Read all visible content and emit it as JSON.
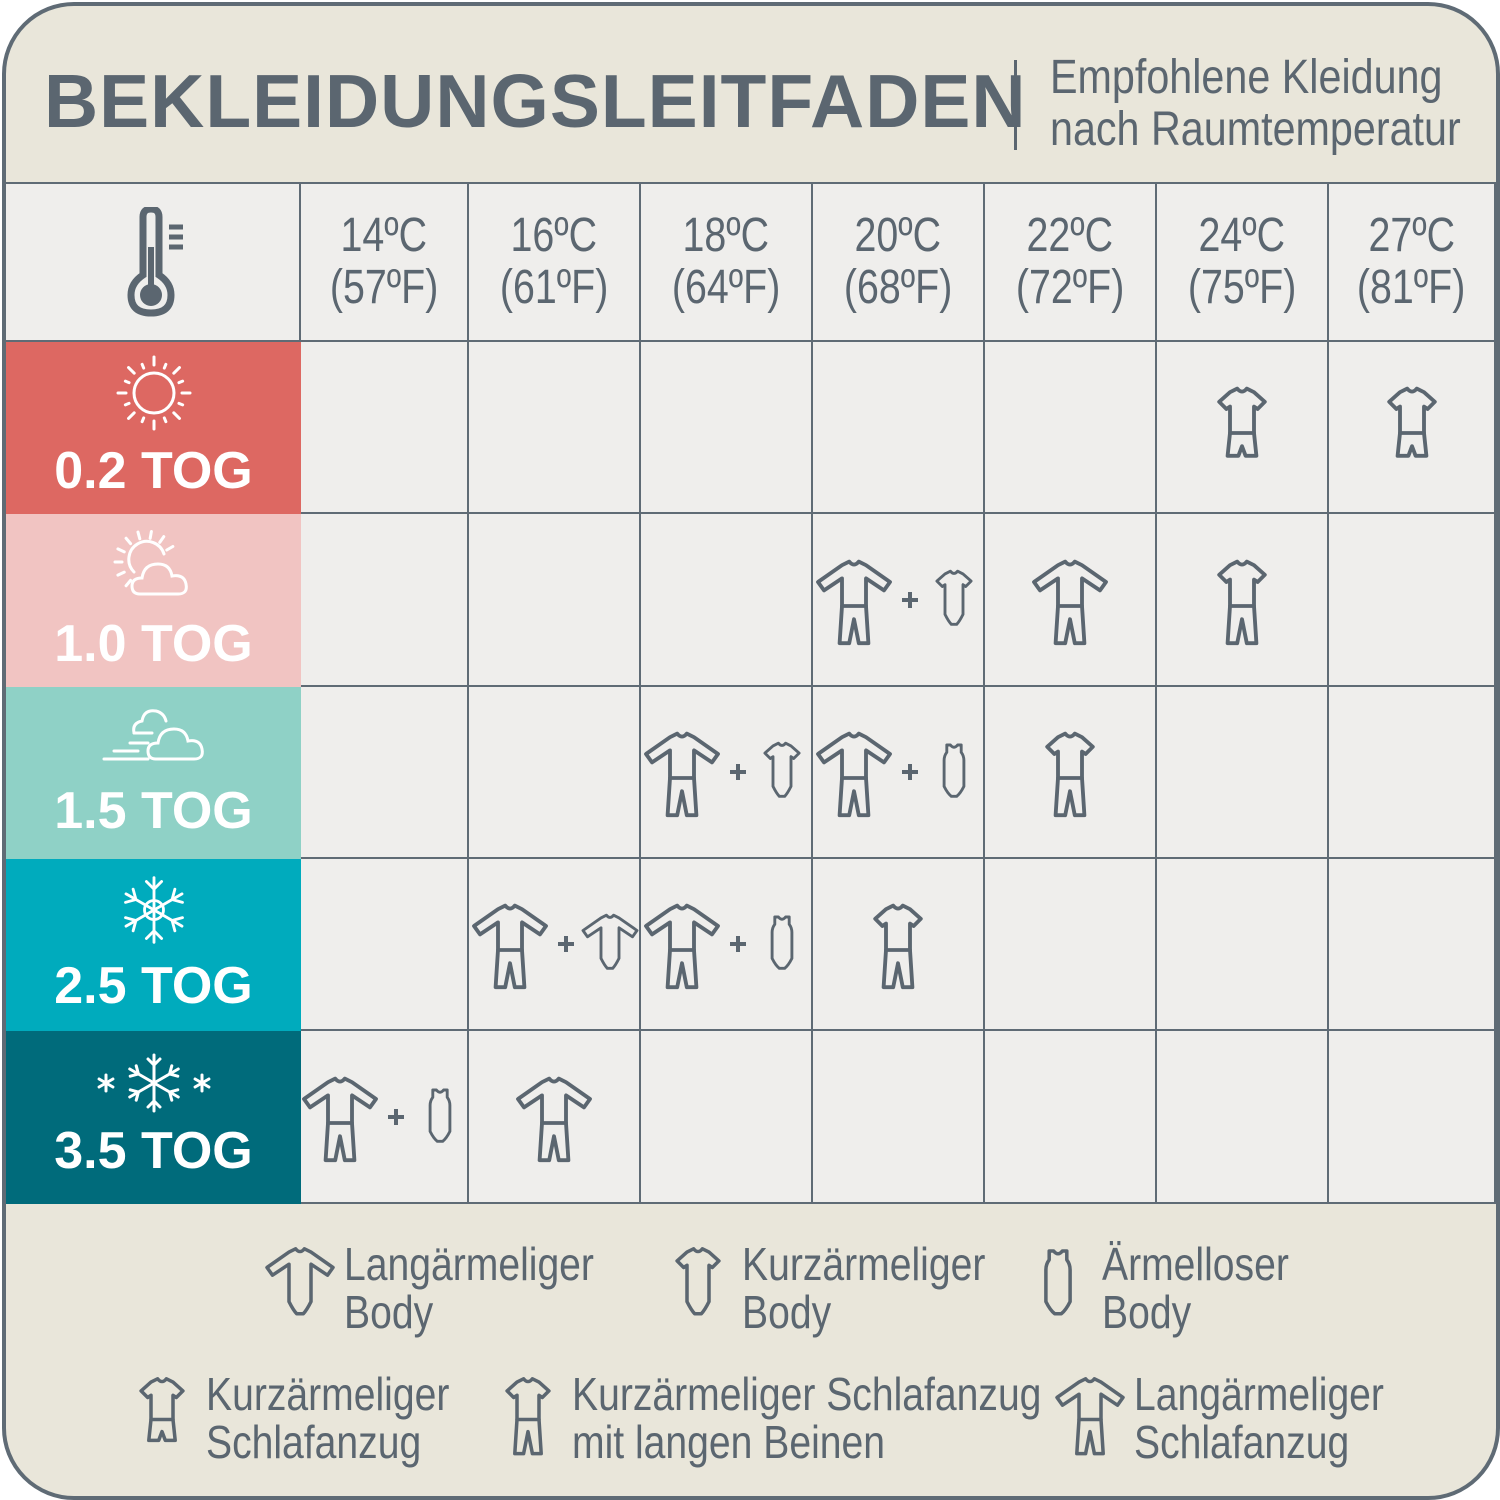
{
  "header": {
    "title": "BEKLEIDUNGSLEITFADEN",
    "subtitle_line1": "Empfohlene Kleidung",
    "subtitle_line2": "nach Raumtemperatur"
  },
  "header_icon": "thermometer-icon",
  "temperatures": [
    {
      "c": "14ºC",
      "f": "(57ºF)"
    },
    {
      "c": "16ºC",
      "f": "(61ºF)"
    },
    {
      "c": "18ºC",
      "f": "(64ºF)"
    },
    {
      "c": "20ºC",
      "f": "(68ºF)"
    },
    {
      "c": "22ºC",
      "f": "(72ºF)"
    },
    {
      "c": "24ºC",
      "f": "(75ºF)"
    },
    {
      "c": "27ºC",
      "f": "(81ºF)"
    }
  ],
  "rows": [
    {
      "label": "0.2 TOG",
      "icon": "sun-icon",
      "color": "#dd6862",
      "cells": [
        [],
        [],
        [],
        [],
        [],
        [
          "short-sleeve-pyjama"
        ],
        [
          "short-sleeve-pyjama"
        ]
      ]
    },
    {
      "label": "1.0 TOG",
      "icon": "sun-cloud-icon",
      "color": "#f1c4c2",
      "cells": [
        [],
        [],
        [],
        [
          "long-sleeve-pyjama",
          "short-sleeve-body"
        ],
        [
          "long-sleeve-pyjama"
        ],
        [
          "short-sleeve-long-leg-pyjama"
        ],
        []
      ]
    },
    {
      "label": "1.5 TOG",
      "icon": "wind-cloud-icon",
      "color": "#8fd1c6",
      "cells": [
        [],
        [],
        [
          "long-sleeve-pyjama",
          "short-sleeve-body"
        ],
        [
          "long-sleeve-pyjama",
          "sleeveless-body"
        ],
        [
          "short-sleeve-long-leg-pyjama"
        ],
        [],
        []
      ]
    },
    {
      "label": "2.5 TOG",
      "icon": "snowflake-icon",
      "color": "#00abbd",
      "cells": [
        [],
        [
          "long-sleeve-pyjama",
          "long-sleeve-body"
        ],
        [
          "long-sleeve-pyjama",
          "sleeveless-body"
        ],
        [
          "short-sleeve-long-leg-pyjama"
        ],
        [],
        [],
        []
      ]
    },
    {
      "label": "3.5 TOG",
      "icon": "snowflakes-icon",
      "color": "#006b7b",
      "cells": [
        [
          "long-sleeve-pyjama",
          "sleeveless-body"
        ],
        [
          "long-sleeve-pyjama"
        ],
        [],
        [],
        [],
        [],
        []
      ]
    }
  ],
  "legend": [
    {
      "icon": "long-sleeve-body",
      "line1": "Langärmeliger",
      "line2": "Body"
    },
    {
      "icon": "short-sleeve-body",
      "line1": "Kurzärmeliger",
      "line2": "Body"
    },
    {
      "icon": "sleeveless-body",
      "line1": "Ärmelloser",
      "line2": "Body"
    },
    {
      "icon": "short-sleeve-pyjama",
      "line1": "Kurzärmeliger",
      "line2": "Schlafanzug"
    },
    {
      "icon": "short-sleeve-long-leg-pyjama",
      "line1": "Kurzärmeliger Schlafanzug",
      "line2": "mit langen Beinen"
    },
    {
      "icon": "long-sleeve-pyjama",
      "line1": "Langärmeliger",
      "line2": "Schlafanzug"
    }
  ],
  "colors": {
    "text": "#5b6670",
    "lines": "#5f6b75",
    "background": "#e9e6da",
    "cell": "#efeeec"
  }
}
